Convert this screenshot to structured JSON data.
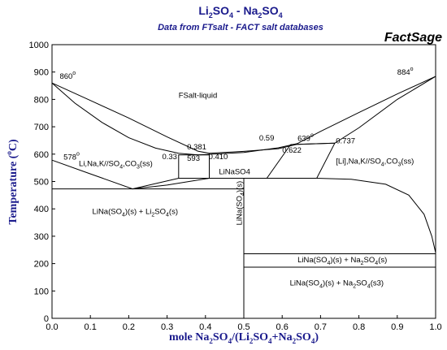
{
  "chart_data": {
    "type": "line",
    "title": {
      "a": "Li",
      "b": "2",
      "c": "SO",
      "d": "4",
      "e": " - Na",
      "f": "2",
      "g": "SO",
      "h": "4"
    },
    "subtitle": "Data from FTsalt - FACT salt databases",
    "brand": "FactSage",
    "xlabel": {
      "a": "mole Na",
      "b": "2",
      "c": "SO",
      "d": "4",
      "e": "/(Li",
      "f": "2",
      "g": "SO",
      "h": "4",
      "i": "+Na",
      "j": "2",
      "k": "SO",
      "l": "4",
      "m": ")"
    },
    "ylabel": {
      "a": "Temperature (",
      "b": "o",
      "c": "C)"
    },
    "xlim": [
      0.0,
      1.0
    ],
    "ylim": [
      0,
      1000
    ],
    "x_ticks": [
      "0.0",
      "0.1",
      "0.2",
      "0.3",
      "0.4",
      "0.5",
      "0.6",
      "0.7",
      "0.8",
      "0.9",
      "1.0"
    ],
    "y_ticks": [
      "0",
      "100",
      "200",
      "300",
      "400",
      "500",
      "600",
      "700",
      "800",
      "900",
      "1000"
    ],
    "grid": false,
    "series": [
      {
        "points": [
          [
            0.0,
            860
          ],
          [
            0.1,
            796
          ],
          [
            0.2,
            732
          ],
          [
            0.3,
            663
          ],
          [
            0.38,
            611
          ],
          [
            0.41,
            603
          ]
        ]
      },
      {
        "points": [
          [
            0.0,
            860
          ],
          [
            0.06,
            786
          ],
          [
            0.13,
            716
          ],
          [
            0.2,
            660
          ],
          [
            0.27,
            622
          ],
          [
            0.33,
            603
          ],
          [
            0.381,
            597
          ]
        ]
      },
      {
        "points": [
          [
            0.41,
            603
          ],
          [
            0.5,
            610
          ],
          [
            0.59,
            620
          ],
          [
            0.639,
            636
          ],
          [
            0.737,
            640
          ],
          [
            0.8,
            696
          ],
          [
            0.9,
            800
          ],
          [
            1.0,
            884
          ]
        ]
      },
      {
        "points": [
          [
            0.381,
            597
          ],
          [
            0.5,
            606
          ],
          [
            0.59,
            623
          ],
          [
            0.64,
            639
          ],
          [
            0.7,
            683
          ],
          [
            0.8,
            752
          ],
          [
            0.9,
            820
          ],
          [
            1.0,
            884
          ]
        ]
      },
      {
        "points": [
          [
            0.0,
            578
          ],
          [
            0.1,
            528
          ],
          [
            0.21,
            473
          ],
          [
            0.33,
            512
          ]
        ]
      },
      {
        "points": [
          [
            0.21,
            473
          ],
          [
            0.3,
            487
          ],
          [
            0.41,
            512
          ]
        ]
      },
      {
        "points": [
          [
            0.33,
            512
          ],
          [
            0.33,
            597
          ],
          [
            0.41,
            597
          ],
          [
            0.41,
            512
          ],
          [
            0.33,
            512
          ]
        ]
      },
      {
        "points": [
          [
            0.41,
            597
          ],
          [
            0.41,
            603
          ]
        ]
      },
      {
        "points": [
          [
            0.0,
            473
          ],
          [
            0.5,
            473
          ]
        ]
      },
      {
        "points": [
          [
            0.41,
            512
          ],
          [
            0.56,
            512
          ],
          [
            0.622,
            635
          ]
        ]
      },
      {
        "points": [
          [
            0.5,
            512
          ],
          [
            0.5,
            0
          ]
        ]
      },
      {
        "points": [
          [
            0.56,
            512
          ],
          [
            0.69,
            512
          ]
        ]
      },
      {
        "points": [
          [
            0.622,
            635
          ],
          [
            0.737,
            640
          ],
          [
            0.69,
            512
          ]
        ]
      },
      {
        "points": [
          [
            0.69,
            512
          ],
          [
            0.78,
            508
          ],
          [
            0.87,
            490
          ],
          [
            0.93,
            450
          ],
          [
            0.97,
            380
          ],
          [
            0.99,
            300
          ],
          [
            1.0,
            240
          ]
        ]
      },
      {
        "points": [
          [
            0.5,
            236
          ],
          [
            1.0,
            236
          ]
        ]
      },
      {
        "points": [
          [
            0.5,
            187
          ],
          [
            1.0,
            187
          ]
        ]
      }
    ],
    "annotations": [
      {
        "x": 0.02,
        "y": 875,
        "text": {
          "a": "860",
          "b": "o"
        }
      },
      {
        "x": 0.9,
        "y": 890,
        "text": {
          "a": "884",
          "b": "o"
        }
      },
      {
        "x": 0.03,
        "y": 580,
        "text": {
          "a": "578",
          "b": "o"
        }
      },
      {
        "x": 0.352,
        "y": 617,
        "text": {
          "a": "0.381"
        }
      },
      {
        "x": 0.287,
        "y": 582,
        "text": {
          "a": "0.33"
        }
      },
      {
        "x": 0.352,
        "y": 575,
        "text": {
          "a": "593"
        }
      },
      {
        "x": 0.408,
        "y": 582,
        "text": {
          "a": "0.410"
        }
      },
      {
        "x": 0.54,
        "y": 650,
        "text": {
          "a": "0.59"
        }
      },
      {
        "x": 0.64,
        "y": 648,
        "text": {
          "a": "639",
          "b": "o"
        }
      },
      {
        "x": 0.74,
        "y": 640,
        "text": {
          "a": "0.737"
        }
      },
      {
        "x": 0.6,
        "y": 605,
        "text": {
          "a": "0.622"
        }
      },
      {
        "x": 0.33,
        "y": 805,
        "text": {
          "a": "FSalt-liquid"
        }
      },
      {
        "x": 0.07,
        "y": 557,
        "text": {
          "a": "Li,Na,K//SO",
          "b": "4",
          "c": ",CO",
          "d": "3",
          "e": "(ss)"
        }
      },
      {
        "x": 0.435,
        "y": 527,
        "text": {
          "a": "LiNaSO4"
        }
      },
      {
        "x": 0.74,
        "y": 565,
        "text": {
          "a": "[Li],Na,K//SO",
          "b": "4",
          "c": ",CO",
          "d": "3",
          "e": "(ss)"
        }
      },
      {
        "x": 0.105,
        "y": 382,
        "text": {
          "a": "LiNa(SO",
          "b": "4",
          "c": ")(s) + Li",
          "d": "2",
          "e": "SO",
          "f": "4",
          "g": "(s)"
        }
      },
      {
        "x": 0.64,
        "y": 205,
        "text": {
          "a": "LiNa(SO",
          "b": "4",
          "c": ")(s) + Na",
          "d": "2",
          "e": "SO",
          "f": "4",
          "g": "(s)"
        }
      },
      {
        "x": 0.62,
        "y": 120,
        "text": {
          "a": "LiNa(SO",
          "b": "4",
          "c": ")(s) + Na",
          "d": "2",
          "e": "SO",
          "f": "4",
          "g": "(s3)"
        }
      },
      {
        "x": 0.495,
        "y": 340,
        "text": {
          "a": "LiNa(SO",
          "b": "4",
          "c": ")(s)"
        },
        "rotate": -90
      }
    ]
  }
}
